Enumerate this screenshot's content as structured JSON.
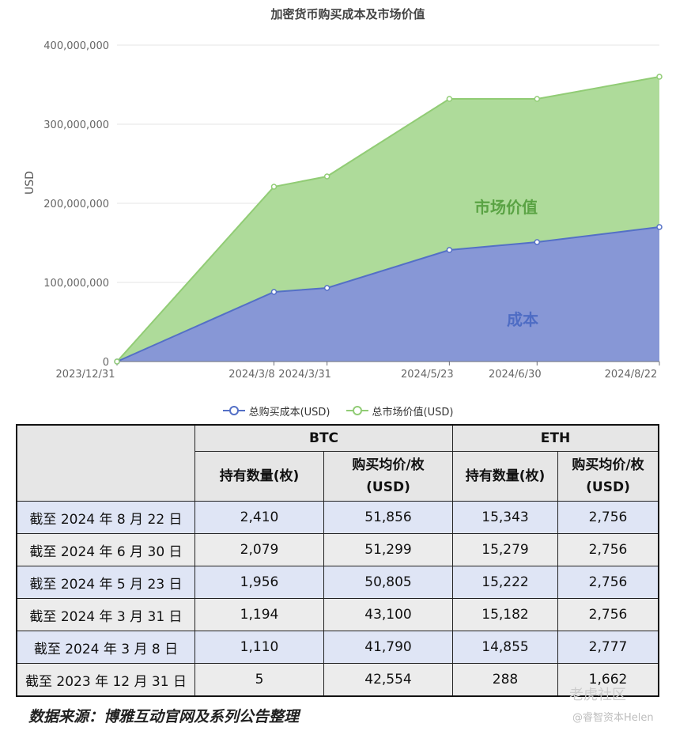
{
  "chart_data": {
    "type": "area",
    "title": "加密货币购买成本及市场价值",
    "ylabel": "USD",
    "xlabel": "",
    "ylim": [
      0,
      400000000
    ],
    "yticks": [
      "0",
      "100,000,000",
      "200,000,000",
      "300,000,000",
      "400,000,000"
    ],
    "y_tick_values": [
      0,
      100000000,
      200000000,
      300000000,
      400000000
    ],
    "x": [
      "2023/12/31",
      "2024/3/8",
      "2024/3/31",
      "2024/5/23",
      "2024/6/30",
      "2024/8/22"
    ],
    "x_dates": [
      "2023-12-31",
      "2024-03-08",
      "2024-03-31",
      "2024-05-23",
      "2024-06-30",
      "2024-08-22"
    ],
    "grid": true,
    "legend_placement": "bottom",
    "series": [
      {
        "name": "总购买成本(USD)",
        "values": [
          0,
          88000000,
          93000000,
          141000000,
          151000000,
          170000000
        ],
        "color": "#5470c6",
        "fill": "#8797d6"
      },
      {
        "name": "总市场价值(USD)",
        "values": [
          0,
          221000000,
          234000000,
          332000000,
          332000000,
          360000000
        ],
        "color": "#91cc75",
        "fill": "#aedb9a"
      }
    ],
    "annotations": [
      {
        "text": "市场价值",
        "color": "#5aa344"
      },
      {
        "text": "成本",
        "color": "#4e6cc4"
      }
    ]
  },
  "table": {
    "groups": [
      "BTC",
      "ETH"
    ],
    "columns": [
      "持有数量(枚)",
      "购买均价/枚(USD)",
      "持有数量(枚)",
      "购买均价/枚(USD)"
    ],
    "columns_lines": [
      [
        "持有数量(枚)"
      ],
      [
        "购买均价/枚",
        "(USD)"
      ],
      [
        "持有数量(枚)"
      ],
      [
        "购买均价/枚",
        "(USD)"
      ]
    ],
    "rows": [
      {
        "date": "截至 2024 年 8 月 22 日",
        "btc_qty": "2,410",
        "btc_avg": "51,856",
        "eth_qty": "15,343",
        "eth_avg": "2,756"
      },
      {
        "date": "截至 2024 年 6 月 30 日",
        "btc_qty": "2,079",
        "btc_avg": "51,299",
        "eth_qty": "15,279",
        "eth_avg": "2,756"
      },
      {
        "date": "截至 2024 年 5 月 23 日",
        "btc_qty": "1,956",
        "btc_avg": "50,805",
        "eth_qty": "15,222",
        "eth_avg": "2,756"
      },
      {
        "date": "截至 2024 年 3 月 31 日",
        "btc_qty": "1,194",
        "btc_avg": "43,100",
        "eth_qty": "15,182",
        "eth_avg": "2,756"
      },
      {
        "date": "截至 2024 年 3 月 8 日",
        "btc_qty": "1,110",
        "btc_avg": "41,790",
        "eth_qty": "14,855",
        "eth_avg": "2,777"
      },
      {
        "date": "截至 2023 年 12 月 31 日",
        "btc_qty": "5",
        "btc_avg": "42,554",
        "eth_qty": "288",
        "eth_avg": "1,662"
      }
    ]
  },
  "footer": {
    "source": "数据来源：博雅互动官网及系列公告整理"
  },
  "watermark": {
    "main": "老虎社区",
    "sub": "@睿智资本Helen"
  }
}
